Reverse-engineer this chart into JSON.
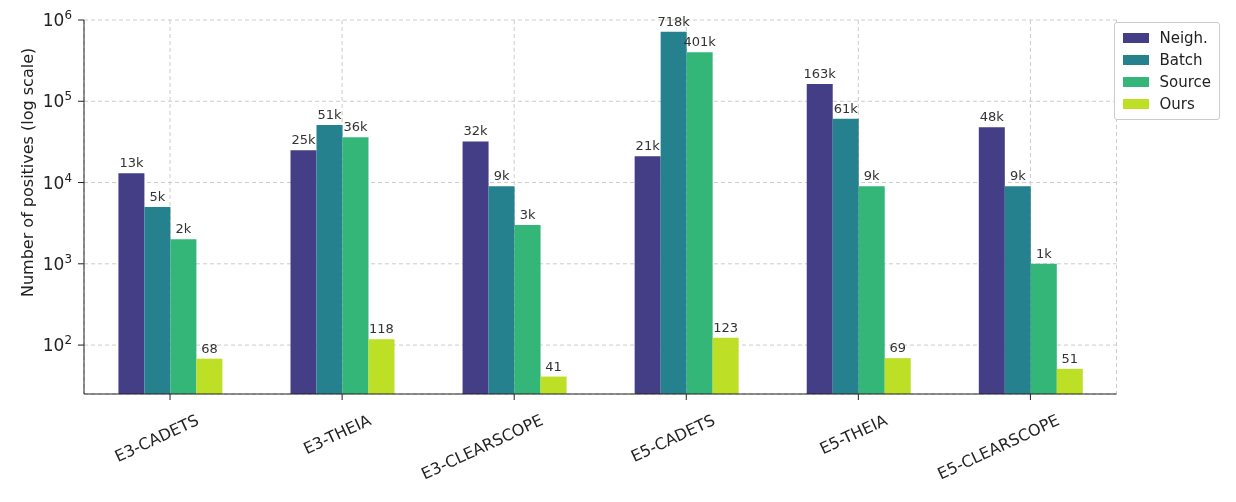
{
  "chart_data": {
    "type": "bar",
    "ylabel": "Number of positives (log scale)",
    "log": true,
    "categories": [
      "E3-CADETS",
      "E3-THEIA",
      "E3-CLEARSCOPE",
      "E5-CADETS",
      "E5-THEIA",
      "E5-CLEARSCOPE"
    ],
    "series": [
      {
        "name": "Neigh.",
        "color": "#433e85",
        "values": [
          13000,
          25000,
          32000,
          21000,
          163000,
          48000
        ],
        "value_labels": [
          "13k",
          "25k",
          "32k",
          "21k",
          "163k",
          "48k"
        ]
      },
      {
        "name": "Batch",
        "color": "#25818e",
        "values": [
          5000,
          51000,
          9000,
          718000,
          61000,
          9000
        ],
        "value_labels": [
          "5k",
          "51k",
          "9k",
          "718k",
          "61k",
          "9k"
        ]
      },
      {
        "name": "Source",
        "color": "#34b679",
        "values": [
          2000,
          36000,
          3000,
          401000,
          9000,
          1000
        ],
        "value_labels": [
          "2k",
          "36k",
          "3k",
          "401k",
          "9k",
          "1k"
        ]
      },
      {
        "name": "Ours",
        "color": "#bddf26",
        "values": [
          68,
          118,
          41,
          123,
          69,
          51
        ],
        "value_labels": [
          "68",
          "118",
          "41",
          "123",
          "69",
          "51"
        ]
      }
    ],
    "ylim": [
      25,
      1000000
    ],
    "yticks": [
      {
        "value": 100,
        "label": "10$^{2}$"
      },
      {
        "value": 1000,
        "label": "10$^{3}$"
      },
      {
        "value": 10000,
        "label": "10$^{4}$"
      },
      {
        "value": 100000,
        "label": "10$^{5}$"
      },
      {
        "value": 1000000,
        "label": "10$^{6}$"
      }
    ],
    "grid": true,
    "legend": "top right"
  }
}
